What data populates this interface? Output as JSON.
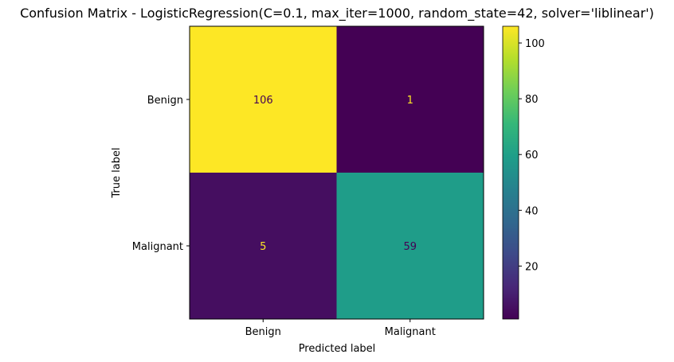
{
  "chart_data": {
    "type": "heatmap",
    "title": "Confusion Matrix - LogisticRegression(C=0.1, max_iter=1000, random_state=42, solver='liblinear')",
    "xlabel": "Predicted label",
    "ylabel": "True label",
    "x_categories": [
      "Benign",
      "Malignant"
    ],
    "y_categories": [
      "Benign",
      "Malignant"
    ],
    "values": [
      [
        106,
        1
      ],
      [
        5,
        59
      ]
    ],
    "colormap": "viridis",
    "vmin": 1,
    "vmax": 106,
    "colorbar_ticks": [
      20,
      40,
      60,
      80,
      100
    ],
    "text_color_light": "#fde725",
    "text_color_dark": "#440154"
  }
}
